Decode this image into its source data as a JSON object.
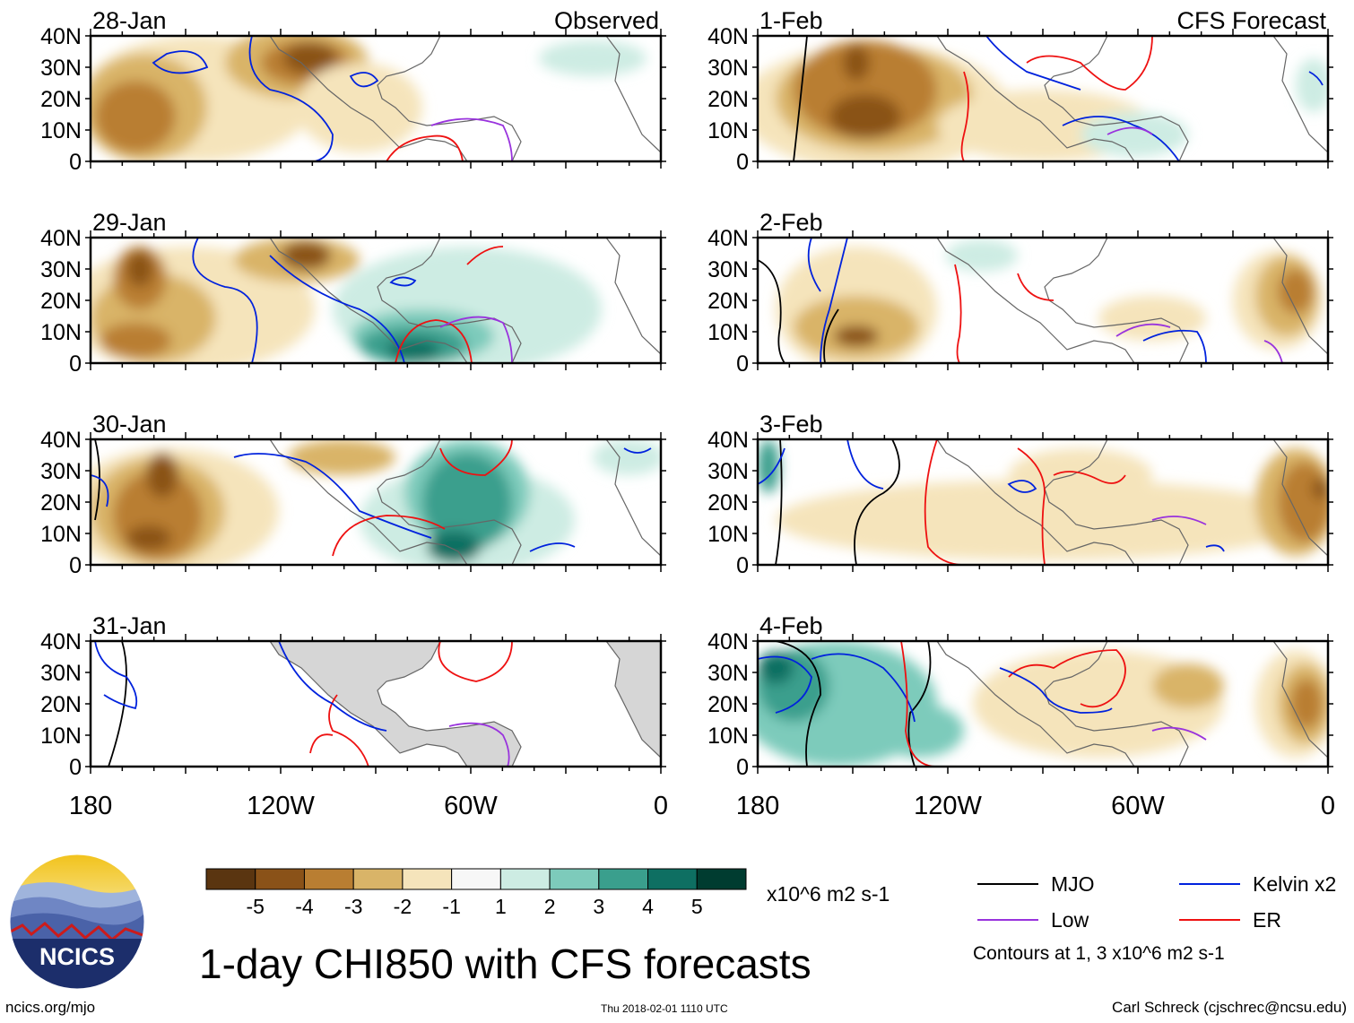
{
  "title": "1-day CHI850 with CFS forecasts",
  "headers": {
    "observed": "Observed",
    "forecast": "CFS Forecast"
  },
  "lat_labels": [
    "40N",
    "30N",
    "20N",
    "10N",
    "0"
  ],
  "lon_labels": [
    "180",
    "120W",
    "60W",
    "0"
  ],
  "panels": [
    {
      "date": "28-Jan",
      "group": "observed"
    },
    {
      "date": "29-Jan",
      "group": "observed"
    },
    {
      "date": "30-Jan",
      "group": "observed"
    },
    {
      "date": "31-Jan",
      "group": "observed"
    },
    {
      "date": "1-Feb",
      "group": "forecast"
    },
    {
      "date": "2-Feb",
      "group": "forecast"
    },
    {
      "date": "3-Feb",
      "group": "forecast"
    },
    {
      "date": "4-Feb",
      "group": "forecast"
    }
  ],
  "colorbar": {
    "colors": [
      "#5a3510",
      "#8a5218",
      "#b97e32",
      "#d9b468",
      "#f5e4bb",
      "#f7f7f7",
      "#cdece3",
      "#7dcbbb",
      "#3a9f8d",
      "#0e6f62",
      "#003c30"
    ],
    "labels": [
      "-5",
      "-4",
      "-3",
      "-2",
      "-1",
      "1",
      "2",
      "3",
      "4",
      "5"
    ],
    "units": "x10^6 m2 s-1"
  },
  "legend": {
    "items": [
      {
        "label": "MJO",
        "color": "#000000"
      },
      {
        "label": "Kelvin x2",
        "color": "#0022dd"
      },
      {
        "label": "Low",
        "color": "#9933dd"
      },
      {
        "label": "ER",
        "color": "#ee1111"
      }
    ],
    "note": "Contours at 1, 3 x10^6 m2 s-1"
  },
  "logo_text": "NCICS",
  "footer": {
    "left": "ncics.org/mjo",
    "center": "Thu 2018-02-01 1110 UTC",
    "right": "Carl Schreck (cjschrec@ncsu.edu)"
  }
}
